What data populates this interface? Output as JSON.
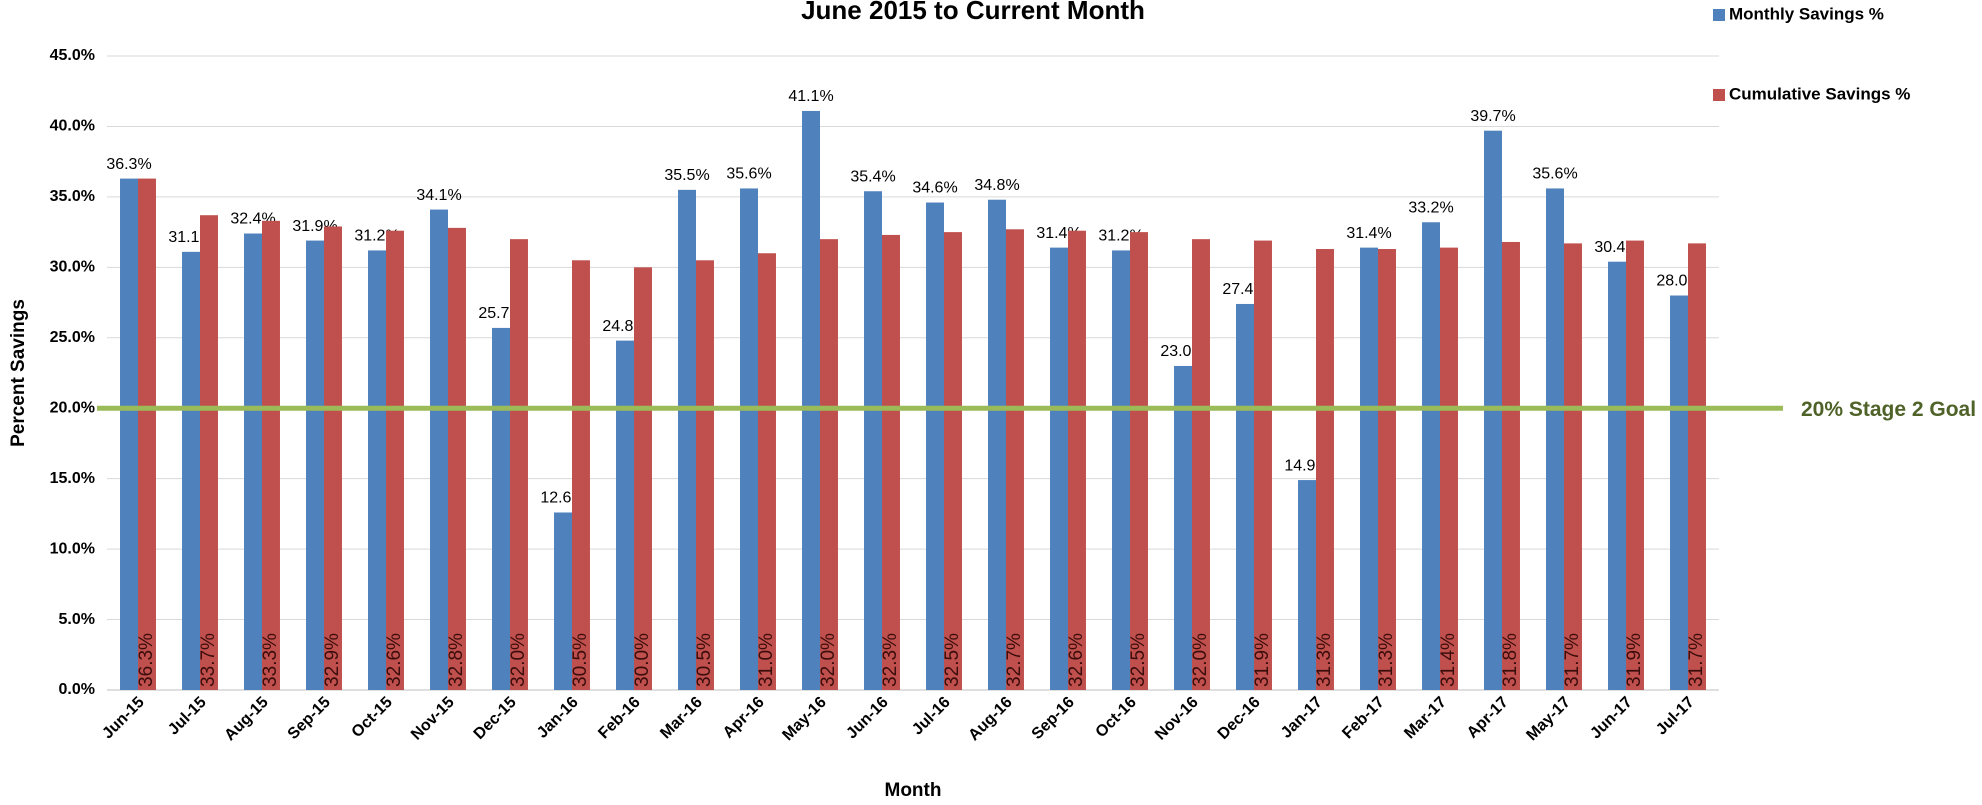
{
  "chart_data": {
    "type": "bar",
    "title": "June 2015 to Current Month",
    "x_label": "Month",
    "y_label": "Percent Savings",
    "categories": [
      "Jun-15",
      "Jul-15",
      "Aug-15",
      "Sep-15",
      "Oct-15",
      "Nov-15",
      "Dec-15",
      "Jan-16",
      "Feb-16",
      "Mar-16",
      "Apr-16",
      "May-16",
      "Jun-16",
      "Jul-16",
      "Aug-16",
      "Sep-16",
      "Oct-16",
      "Nov-16",
      "Dec-16",
      "Jan-17",
      "Feb-17",
      "Mar-17",
      "Apr-17",
      "May-17",
      "Jun-17",
      "Jul-17"
    ],
    "series": [
      {
        "name": "Monthly Savings %",
        "color": "#4f81bd",
        "values": [
          36.3,
          31.1,
          32.4,
          31.9,
          31.2,
          34.1,
          25.7,
          12.6,
          24.8,
          35.5,
          35.6,
          41.1,
          35.4,
          34.6,
          34.8,
          31.4,
          31.2,
          23.0,
          27.4,
          14.9,
          31.4,
          33.2,
          39.7,
          35.6,
          30.4,
          28.0
        ],
        "value_labels": [
          "36.3%",
          "31.1%",
          "32.4%",
          "31.9%",
          "31.2%",
          "34.1%",
          "25.7%",
          "12.6%",
          "24.8%",
          "35.5%",
          "35.6%",
          "41.1%",
          "35.4%",
          "34.6%",
          "34.8%",
          "31.4%",
          "31.2%",
          "23.0%",
          "27.4%",
          "14.9%",
          "31.4%",
          "33.2%",
          "39.7%",
          "35.6%",
          "30.4%",
          "28.0%"
        ]
      },
      {
        "name": "Cumulative Savings %",
        "color": "#c0504d",
        "values": [
          36.3,
          33.7,
          33.3,
          32.9,
          32.6,
          32.8,
          32.0,
          30.5,
          30.0,
          30.5,
          31.0,
          32.0,
          32.3,
          32.5,
          32.7,
          32.6,
          32.5,
          32.0,
          31.9,
          31.3,
          31.3,
          31.4,
          31.8,
          31.7,
          31.9,
          31.7
        ],
        "value_labels": [
          "36.3%",
          "33.7%",
          "33.3%",
          "32.9%",
          "32.6%",
          "32.8%",
          "32.0%",
          "30.5%",
          "30.0%",
          "30.5%",
          "31.0%",
          "32.0%",
          "32.3%",
          "32.5%",
          "32.7%",
          "32.6%",
          "32.5%",
          "32.0%",
          "31.9%",
          "31.3%",
          "31.3%",
          "31.4%",
          "31.8%",
          "31.7%",
          "31.9%",
          "31.7%"
        ]
      }
    ],
    "ylim": [
      0,
      45
    ],
    "yticks": [
      {
        "value": 0,
        "label": "0.0%"
      },
      {
        "value": 5,
        "label": "5.0%"
      },
      {
        "value": 10,
        "label": "10.0%"
      },
      {
        "value": 15,
        "label": "15.0%"
      },
      {
        "value": 20,
        "label": "20.0%"
      },
      {
        "value": 25,
        "label": "25.0%"
      },
      {
        "value": 30,
        "label": "30.0%"
      },
      {
        "value": 35,
        "label": "35.0%"
      },
      {
        "value": 40,
        "label": "40.0%"
      },
      {
        "value": 45,
        "label": "45.0%"
      }
    ],
    "grid": true,
    "legend": "top-right",
    "goal": {
      "value": 20,
      "label": "20% Stage 2 Goal",
      "color": "#9bbb59"
    }
  }
}
